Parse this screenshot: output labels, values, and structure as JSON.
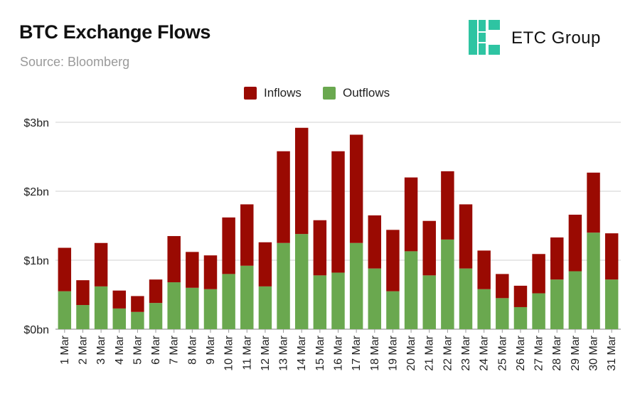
{
  "header": {
    "title": "BTC Exchange Flows",
    "source": "Source: Bloomberg",
    "brand_name": "ETC Group"
  },
  "colors": {
    "inflows": "#9a0a02",
    "outflows": "#6aa84f",
    "brand_accent": "#2ec4a2",
    "grid": "#d0d0d0"
  },
  "chart_data": {
    "type": "bar",
    "stacked": true,
    "title": "BTC Exchange Flows",
    "ylabel": "",
    "xlabel": "",
    "ylim": [
      0,
      3
    ],
    "yticks": [
      0,
      1,
      2,
      3
    ],
    "ytick_labels": [
      "$0bn",
      "$1bn",
      "$2bn",
      "$3bn"
    ],
    "grid": true,
    "legend_position": "top-center",
    "categories": [
      "1 Mar",
      "2 Mar",
      "3 Mar",
      "4 Mar",
      "5 Mar",
      "6 Mar",
      "7 Mar",
      "8 Mar",
      "9 Mar",
      "10 Mar",
      "11 Mar",
      "12 Mar",
      "13 Mar",
      "14 Mar",
      "15 Mar",
      "16 Mar",
      "17 Mar",
      "18 Mar",
      "19 Mar",
      "20 Mar",
      "21 Mar",
      "22 Mar",
      "23 Mar",
      "24 Mar",
      "25 Mar",
      "26 Mar",
      "27 Mar",
      "28 Mar",
      "29 Mar",
      "30 Mar",
      "31 Mar"
    ],
    "series": [
      {
        "name": "Outflows",
        "color": "#6aa84f",
        "values": [
          0.55,
          0.35,
          0.62,
          0.3,
          0.25,
          0.38,
          0.68,
          0.6,
          0.58,
          0.8,
          0.92,
          0.62,
          1.25,
          1.38,
          0.78,
          0.82,
          1.25,
          0.88,
          0.55,
          1.13,
          0.78,
          1.3,
          0.88,
          0.58,
          0.45,
          0.32,
          0.52,
          0.72,
          0.84,
          1.4,
          0.72
        ]
      },
      {
        "name": "Inflows",
        "color": "#9a0a02",
        "values": [
          0.63,
          0.36,
          0.63,
          0.26,
          0.23,
          0.34,
          0.67,
          0.52,
          0.49,
          0.82,
          0.89,
          0.64,
          1.33,
          1.54,
          0.8,
          1.76,
          1.57,
          0.77,
          0.89,
          1.07,
          0.79,
          0.99,
          0.93,
          0.56,
          0.35,
          0.31,
          0.57,
          0.61,
          0.82,
          0.87,
          0.67
        ]
      }
    ]
  }
}
